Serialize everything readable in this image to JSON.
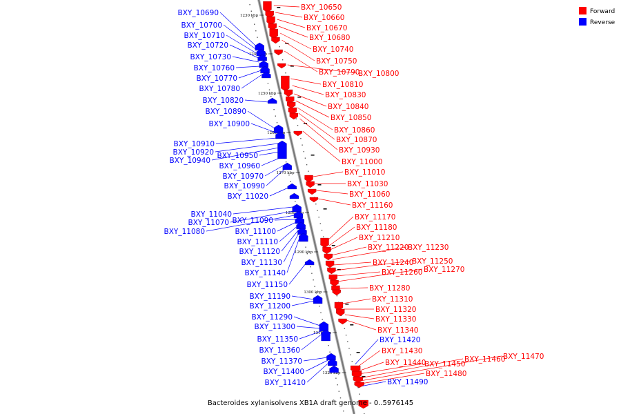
{
  "title": "Bacteroides xylanisolvens XB1A draft genome - 0..5976145",
  "legend": [
    {
      "label": "Forward",
      "color": "#ff0000"
    },
    {
      "label": "Reverse",
      "color": "#0000ff"
    }
  ],
  "colors": {
    "forward": "#ff0000",
    "reverse": "#0000ff",
    "backbone": "#777777"
  },
  "scale_ticks": [
    "1230 kbp",
    "1240 kbp",
    "1250 kbp",
    "1260 kbp",
    "1270 kbp",
    "1280 kbp",
    "1290 kbp",
    "1300 kbp",
    "1310 kbp",
    "1320 kbp"
  ],
  "forward_genes": [
    "BXY_10650",
    "BXY_10660",
    "BXY_10670",
    "BXY_10680",
    "BXY_10740",
    "BXY_10750",
    "BXY_10790",
    "BXY_10800",
    "BXY_10810",
    "BXY_10830",
    "BXY_10840",
    "BXY_10850",
    "BXY_10860",
    "BXY_10870",
    "BXY_10930",
    "BXY_11000",
    "BXY_11010",
    "BXY_11030",
    "BXY_11060",
    "BXY_11160",
    "BXY_11170",
    "BXY_11180",
    "BXY_11210",
    "BXY_11220",
    "BXY_11230",
    "BXY_11240",
    "BXY_11250",
    "BXY_11260",
    "BXY_11270",
    "BXY_11280",
    "BXY_11310",
    "BXY_11320",
    "BXY_11330",
    "BXY_11340",
    "BXY_11430",
    "BXY_11440",
    "BXY_11450",
    "BXY_11460",
    "BXY_11470",
    "BXY_11480"
  ],
  "reverse_genes": [
    "BXY_10690",
    "BXY_10700",
    "BXY_10710",
    "BXY_10720",
    "BXY_10730",
    "BXY_10760",
    "BXY_10770",
    "BXY_10780",
    "BXY_10820",
    "BXY_10890",
    "BXY_10900",
    "BXY_10910",
    "BXY_10920",
    "BXY_10940",
    "BXY_10950",
    "BXY_10960",
    "BXY_10970",
    "BXY_10990",
    "BXY_11020",
    "BXY_11040",
    "BXY_11070",
    "BXY_11080",
    "BXY_11090",
    "BXY_11100",
    "BXY_11110",
    "BXY_11120",
    "BXY_11130",
    "BXY_11140",
    "BXY_11150",
    "BXY_11190",
    "BXY_11200",
    "BXY_11290",
    "BXY_11300",
    "BXY_11350",
    "BXY_11360",
    "BXY_11370",
    "BXY_11400",
    "BXY_11410",
    "BXY_11420",
    "BXY_11490"
  ]
}
